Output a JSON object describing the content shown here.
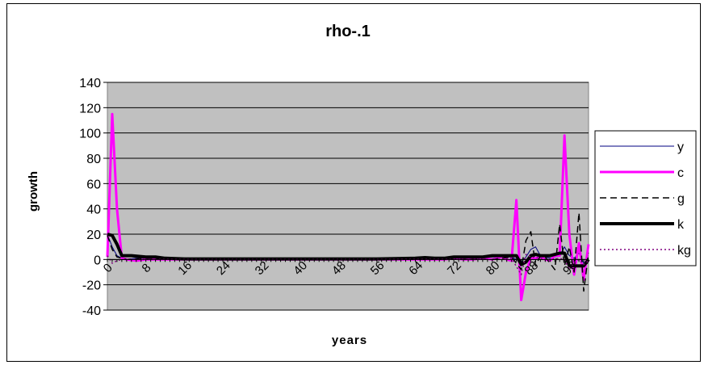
{
  "chart_data": {
    "type": "line",
    "title": "rho-.1",
    "xlabel": "years",
    "ylabel": "growth",
    "ylim": [
      -40,
      140
    ],
    "yticks": [
      -40,
      -20,
      0,
      20,
      40,
      60,
      80,
      100,
      120,
      140
    ],
    "xlim": [
      0,
      100
    ],
    "xticks": [
      0,
      8,
      16,
      24,
      32,
      40,
      48,
      56,
      64,
      72,
      80,
      88,
      96
    ],
    "grid": true,
    "legend_position": "right",
    "plot_background": "#c0c0c0",
    "series": [
      {
        "name": "y",
        "color": "#000080",
        "dash": "solid",
        "width": 1,
        "points": [
          [
            0,
            20
          ],
          [
            1,
            10
          ],
          [
            2,
            3
          ],
          [
            3,
            1
          ],
          [
            4,
            0
          ],
          [
            6,
            1
          ],
          [
            8,
            1
          ],
          [
            10,
            0.5
          ],
          [
            12,
            0.3
          ],
          [
            16,
            0
          ],
          [
            64,
            0
          ],
          [
            72,
            0
          ],
          [
            80,
            2
          ],
          [
            84,
            2
          ],
          [
            86,
            -2
          ],
          [
            87,
            2
          ],
          [
            88,
            8
          ],
          [
            89,
            10
          ],
          [
            90,
            3
          ],
          [
            92,
            1
          ],
          [
            94,
            3
          ],
          [
            95,
            10
          ],
          [
            96,
            3
          ],
          [
            97,
            1
          ],
          [
            98,
            5
          ],
          [
            99,
            -3
          ],
          [
            100,
            1
          ]
        ]
      },
      {
        "name": "c",
        "color": "#ff00ff",
        "dash": "solid",
        "width": 3,
        "points": [
          [
            0,
            2
          ],
          [
            1,
            115
          ],
          [
            2,
            40
          ],
          [
            3,
            1
          ],
          [
            4,
            0
          ],
          [
            6,
            -1
          ],
          [
            8,
            0
          ],
          [
            10,
            0
          ],
          [
            16,
            0
          ],
          [
            64,
            0
          ],
          [
            70,
            0
          ],
          [
            72,
            1
          ],
          [
            74,
            0
          ],
          [
            76,
            0
          ],
          [
            78,
            1
          ],
          [
            80,
            0
          ],
          [
            82,
            2
          ],
          [
            83,
            0
          ],
          [
            84,
            -1
          ],
          [
            85,
            47
          ],
          [
            86,
            -32
          ],
          [
            87,
            -10
          ],
          [
            88,
            1
          ],
          [
            89,
            1
          ],
          [
            90,
            2
          ],
          [
            91,
            0
          ],
          [
            92,
            -1
          ],
          [
            93,
            3
          ],
          [
            94,
            3
          ],
          [
            95,
            98
          ],
          [
            96,
            20
          ],
          [
            97,
            -12
          ],
          [
            98,
            13
          ],
          [
            99,
            -16
          ],
          [
            100,
            12
          ]
        ]
      },
      {
        "name": "g",
        "color": "#000000",
        "dash": "dashed",
        "width": 1.5,
        "points": [
          [
            0,
            19
          ],
          [
            1,
            8
          ],
          [
            2,
            2
          ],
          [
            3,
            1
          ],
          [
            4,
            0
          ],
          [
            8,
            1
          ],
          [
            16,
            0
          ],
          [
            64,
            0
          ],
          [
            72,
            0
          ],
          [
            80,
            0
          ],
          [
            84,
            2
          ],
          [
            86,
            -8
          ],
          [
            87,
            15
          ],
          [
            88,
            22
          ],
          [
            89,
            -5
          ],
          [
            90,
            3
          ],
          [
            91,
            2
          ],
          [
            93,
            -8
          ],
          [
            94,
            28
          ],
          [
            95,
            -5
          ],
          [
            96,
            10
          ],
          [
            97,
            -10
          ],
          [
            98,
            37
          ],
          [
            99,
            -25
          ],
          [
            100,
            5
          ]
        ]
      },
      {
        "name": "k",
        "color": "#000000",
        "dash": "solid",
        "width": 4,
        "points": [
          [
            0,
            20
          ],
          [
            1,
            19
          ],
          [
            2,
            12
          ],
          [
            3,
            3
          ],
          [
            5,
            3
          ],
          [
            8,
            2
          ],
          [
            10,
            2
          ],
          [
            12,
            1
          ],
          [
            16,
            0.5
          ],
          [
            24,
            0.5
          ],
          [
            32,
            0.5
          ],
          [
            40,
            0.5
          ],
          [
            48,
            0.5
          ],
          [
            56,
            0.5
          ],
          [
            64,
            1
          ],
          [
            66,
            1.5
          ],
          [
            68,
            1
          ],
          [
            70,
            1
          ],
          [
            72,
            2
          ],
          [
            74,
            2
          ],
          [
            76,
            2
          ],
          [
            78,
            2
          ],
          [
            80,
            3
          ],
          [
            84,
            3
          ],
          [
            85,
            3
          ],
          [
            86,
            -4
          ],
          [
            87,
            -2
          ],
          [
            88,
            3
          ],
          [
            89,
            4
          ],
          [
            90,
            3
          ],
          [
            92,
            3
          ],
          [
            93,
            4
          ],
          [
            94,
            5
          ],
          [
            95,
            5
          ],
          [
            96,
            -5
          ],
          [
            98,
            -5
          ],
          [
            99,
            -5
          ],
          [
            100,
            0
          ]
        ]
      },
      {
        "name": "kg",
        "color": "#800080",
        "dash": "dotted",
        "width": 1.5,
        "points": [
          [
            0,
            3
          ],
          [
            1,
            -3
          ],
          [
            2,
            -1
          ],
          [
            3,
            0
          ],
          [
            16,
            0
          ],
          [
            64,
            0
          ],
          [
            72,
            0
          ],
          [
            80,
            0
          ],
          [
            84,
            1
          ],
          [
            86,
            -12
          ],
          [
            87,
            4
          ],
          [
            88,
            2
          ],
          [
            90,
            1
          ],
          [
            92,
            0
          ],
          [
            94,
            1
          ],
          [
            95,
            0
          ],
          [
            96,
            -8
          ],
          [
            97,
            -2
          ],
          [
            98,
            0
          ],
          [
            99,
            -4
          ],
          [
            100,
            -1
          ]
        ]
      }
    ]
  }
}
